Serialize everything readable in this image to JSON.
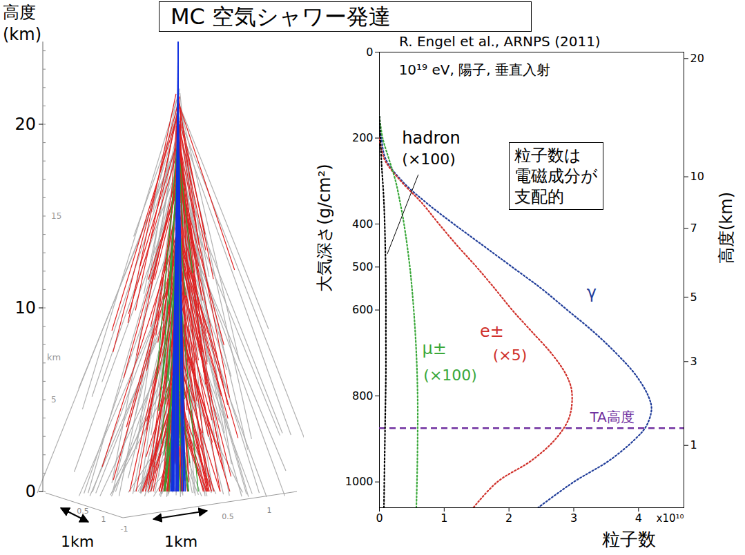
{
  "title": "MC 空気シャワー発達",
  "left_panel": {
    "axis_label": [
      "高度",
      "(km)"
    ],
    "ylim": [
      0,
      24.5
    ],
    "ticks": [
      0,
      10,
      20
    ],
    "inner_ticks": [
      5,
      15
    ],
    "inner_unit": "km",
    "floor_ticks": [
      "0.5",
      "1",
      "-1",
      "0.5",
      "1"
    ],
    "scale_bars": [
      "1km",
      "1km"
    ]
  },
  "chart_data": {
    "type": "line",
    "source": "R. Engel et al., ARNPS (2011)",
    "subtitle": "10¹⁹ eV, 陽子, 垂直入射",
    "x_label": "粒子数",
    "x_unit_label": "x10¹⁰",
    "y_label": "大気深さ(g/cm²)",
    "y2_label": "高度(km)",
    "xlim": [
      0,
      4.7
    ],
    "xticks": [
      0,
      1,
      2,
      3,
      4
    ],
    "ylim": [
      1060,
      0
    ],
    "yticks": [
      0,
      200,
      400,
      500,
      600,
      800,
      1000
    ],
    "altitude_ticks": [
      {
        "km": 20,
        "depth": 15
      },
      {
        "km": 10,
        "depth": 290
      },
      {
        "km": 7,
        "depth": 410
      },
      {
        "km": 5,
        "depth": 570
      },
      {
        "km": 3,
        "depth": 720
      },
      {
        "km": 1,
        "depth": 915
      }
    ],
    "grid": false,
    "callout": [
      "粒子数は",
      "電磁成分が",
      "支配的"
    ],
    "reference_line": {
      "name": "TA高度",
      "depth": 875,
      "color": "#7030a0",
      "line_style": "dashed"
    },
    "series": [
      {
        "name": "γ",
        "color": "#1f3c99",
        "line_style": "dotted",
        "depth": [
          150,
          200,
          250,
          300,
          350,
          400,
          450,
          500,
          550,
          600,
          650,
          700,
          750,
          800,
          830,
          870,
          900,
          950,
          1000,
          1060
        ],
        "values": [
          0,
          0.03,
          0.1,
          0.35,
          0.72,
          1.15,
          1.6,
          2.05,
          2.5,
          2.9,
          3.3,
          3.65,
          3.95,
          4.15,
          4.2,
          4.12,
          3.95,
          3.55,
          3.0,
          2.45
        ]
      },
      {
        "name": "e±",
        "scale_label": "(×5)",
        "color": "#d0302a",
        "line_style": "dotted",
        "depth": [
          200,
          250,
          300,
          350,
          400,
          450,
          500,
          550,
          600,
          650,
          700,
          750,
          790,
          850,
          900,
          950,
          1000,
          1060
        ],
        "values": [
          0,
          0.08,
          0.33,
          0.65,
          0.92,
          1.2,
          1.5,
          1.78,
          2.05,
          2.35,
          2.65,
          2.88,
          2.97,
          2.93,
          2.72,
          2.35,
          1.82,
          1.45
        ]
      },
      {
        "name": "μ±",
        "scale_label": "(×100)",
        "color": "#3aa83a",
        "line_style": "dotted",
        "depth": [
          150,
          200,
          250,
          300,
          350,
          400,
          500,
          600,
          700,
          800,
          900,
          1000,
          1060
        ],
        "values": [
          0,
          0.05,
          0.15,
          0.25,
          0.32,
          0.38,
          0.47,
          0.53,
          0.57,
          0.59,
          0.59,
          0.58,
          0.57
        ]
      },
      {
        "name": "hadron",
        "scale_label": "(×100)",
        "color": "#000000",
        "line_style": "dotted",
        "depth": [
          150,
          250,
          350,
          450,
          550,
          650,
          750,
          850,
          950,
          1060
        ],
        "values": [
          0,
          0.03,
          0.07,
          0.09,
          0.1,
          0.1,
          0.1,
          0.09,
          0.08,
          0.07
        ]
      }
    ]
  }
}
